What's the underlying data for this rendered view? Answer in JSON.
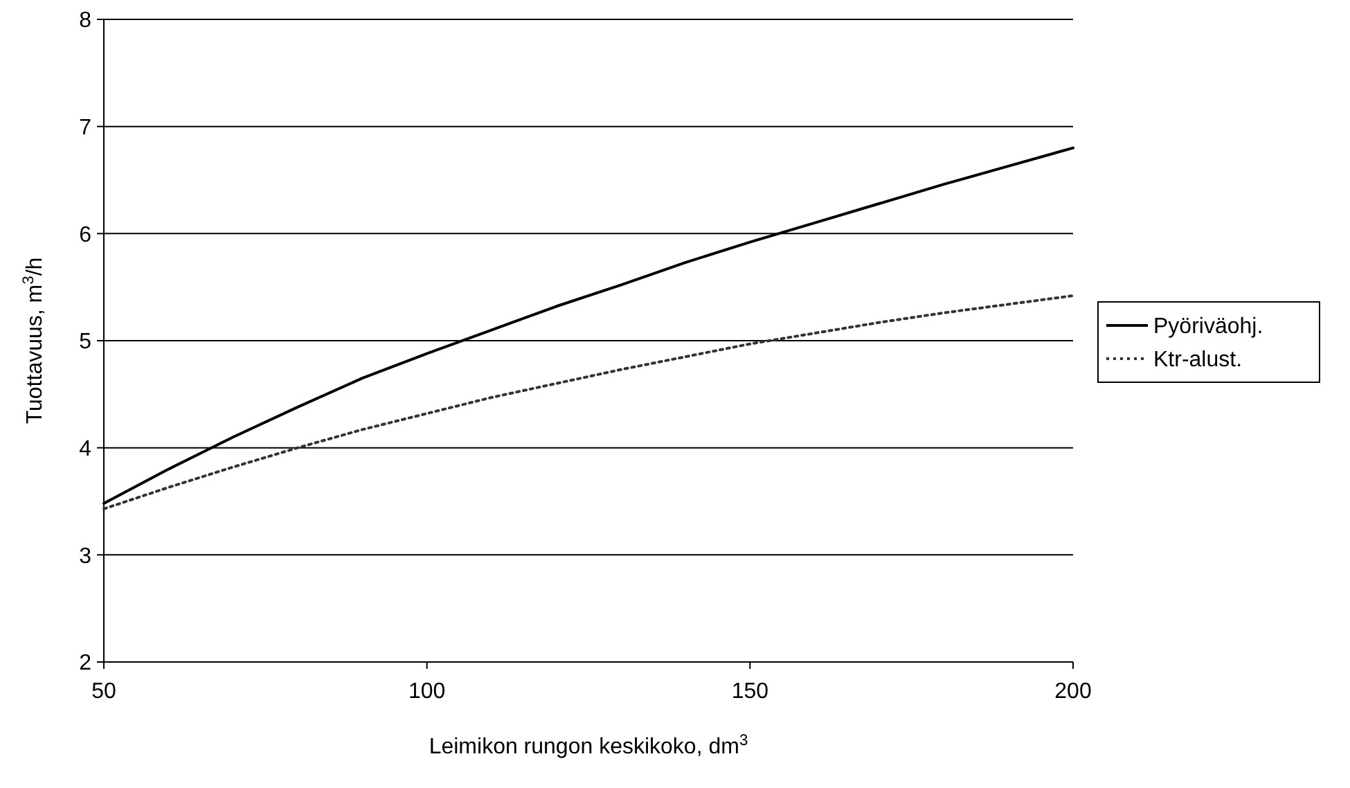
{
  "chart_data": {
    "type": "line",
    "xlabel": "Leimikon rungon keskikoko, dm$^{3}$",
    "ylabel": "Tuottavuus, m$^{3}$/h",
    "xlim": [
      50,
      200
    ],
    "xticks": [
      50,
      100,
      150,
      200
    ],
    "ylim": [
      2,
      8
    ],
    "yticks": [
      2,
      3,
      4,
      5,
      6,
      7,
      8
    ],
    "grid": "y",
    "legend": "right",
    "x": [
      50,
      60,
      70,
      80,
      90,
      100,
      110,
      120,
      130,
      140,
      150,
      160,
      170,
      180,
      190,
      200
    ],
    "series": [
      {
        "name": "Pyöriväohj.",
        "color": "#000000",
        "line_style": "solid",
        "values": [
          3.48,
          3.8,
          4.1,
          4.38,
          4.65,
          4.88,
          5.1,
          5.32,
          5.52,
          5.73,
          5.92,
          6.1,
          6.28,
          6.46,
          6.63,
          6.8
        ]
      },
      {
        "name": "Ktr-alust.",
        "color": "#333333",
        "line_style": "dotted",
        "values": [
          3.43,
          3.63,
          3.82,
          4.0,
          4.17,
          4.32,
          4.47,
          4.6,
          4.73,
          4.85,
          4.97,
          5.07,
          5.17,
          5.26,
          5.34,
          5.42
        ]
      }
    ]
  }
}
